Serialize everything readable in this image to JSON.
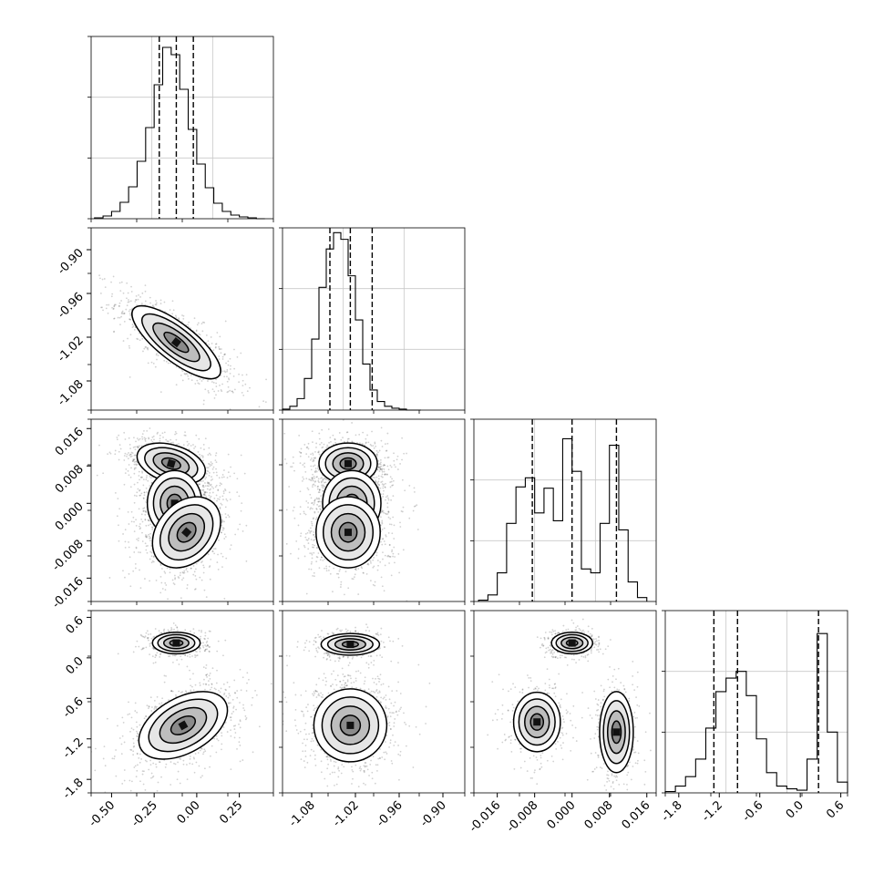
{
  "chart_data": [
    {
      "type": "corner",
      "panel": "hist-p0",
      "bins": [
        -0.6,
        -0.55,
        -0.5,
        -0.45,
        -0.4,
        -0.35,
        -0.3,
        -0.25,
        -0.2,
        -0.15,
        -0.1,
        -0.05,
        0.0,
        0.05,
        0.1,
        0.15,
        0.2,
        0.25,
        0.3,
        0.35,
        0.4
      ],
      "counts": [
        1,
        3,
        8,
        18,
        35,
        63,
        100,
        147,
        188,
        180,
        142,
        98,
        60,
        34,
        17,
        8,
        4,
        2,
        1,
        0
      ],
      "quantiles": [
        -0.22,
        -0.12,
        -0.02
      ],
      "xlim": [
        -0.62,
        0.45
      ],
      "ymax": 200
    },
    {
      "type": "corner",
      "panel": "hist-p1",
      "bins": [
        -1.12,
        -1.11,
        -1.1,
        -1.09,
        -1.08,
        -1.07,
        -1.06,
        -1.05,
        -1.04,
        -1.03,
        -1.02,
        -1.01,
        -1.0,
        -0.99,
        -0.98,
        -0.97,
        -0.96,
        -0.95,
        -0.94,
        -0.93
      ],
      "counts": [
        1,
        4,
        12,
        33,
        74,
        128,
        168,
        185,
        178,
        140,
        94,
        48,
        21,
        9,
        4,
        2,
        1,
        0,
        0
      ],
      "quantiles": [
        -1.055,
        -1.027,
        -0.997
      ],
      "xlim": [
        -1.12,
        -0.87
      ],
      "ymax": 190,
      "xticks": [
        "-1.08",
        "-1.02",
        "-0.96",
        "-0.90"
      ]
    },
    {
      "type": "corner",
      "panel": "hist-p2",
      "bins": [
        -0.02,
        -0.018,
        -0.016,
        -0.014,
        -0.012,
        -0.01,
        -0.008,
        -0.006,
        -0.004,
        -0.002,
        0.0,
        0.002,
        0.004,
        0.006,
        0.008,
        0.01,
        0.012,
        0.014,
        0.016
      ],
      "counts": [
        1,
        5,
        22,
        60,
        88,
        95,
        68,
        87,
        62,
        125,
        100,
        25,
        22,
        60,
        120,
        55,
        15,
        3
      ],
      "quantiles": [
        -0.0085,
        0.0,
        0.0095
      ],
      "xlim": [
        -0.021,
        0.018
      ],
      "ymax": 140,
      "xticks": [
        "-0.016",
        "-0.008",
        "0.000",
        "0.008",
        "0.016"
      ]
    },
    {
      "type": "corner",
      "panel": "hist-p3",
      "bins": [
        -2.0,
        -1.85,
        -1.7,
        -1.55,
        -1.4,
        -1.25,
        -1.1,
        -0.95,
        -0.8,
        -0.65,
        -0.5,
        -0.35,
        -0.2,
        -0.05,
        0.1,
        0.25,
        0.4,
        0.55,
        0.7
      ],
      "counts": [
        1,
        5,
        12,
        25,
        48,
        75,
        85,
        90,
        72,
        40,
        15,
        5,
        3,
        2,
        25,
        118,
        45,
        8
      ],
      "quantiles": [
        -1.28,
        -0.93,
        0.27
      ],
      "xlim": [
        -2.0,
        0.7
      ],
      "ymax": 135,
      "xticks": [
        "-1.8",
        "-1.2",
        "-0.6",
        "0.0",
        "0.6"
      ]
    },
    {
      "type": "scatter-density",
      "panel": "p1-vs-p0",
      "xlim": [
        -0.62,
        0.45
      ],
      "ylim": [
        -1.12,
        -0.87
      ],
      "components": [
        {
          "cx": -0.12,
          "cy": -1.027,
          "sx": 0.13,
          "sy": 0.025,
          "rho": -0.78,
          "w": 1
        }
      ],
      "yticks": [
        "-0.90",
        "-0.96",
        "-1.02",
        "-1.08"
      ]
    },
    {
      "type": "scatter-density",
      "panel": "p2-vs-p0",
      "xlim": [
        -0.62,
        0.45
      ],
      "ylim": [
        -0.021,
        0.018
      ],
      "components": [
        {
          "cx": -0.15,
          "cy": 0.0085,
          "sx": 0.1,
          "sy": 0.0022,
          "rho": -0.35,
          "w": 0.9
        },
        {
          "cx": -0.13,
          "cy": 0.0,
          "sx": 0.08,
          "sy": 0.0035,
          "rho": 0.0,
          "w": 1
        },
        {
          "cx": -0.06,
          "cy": -0.0062,
          "sx": 0.1,
          "sy": 0.0038,
          "rho": 0.3,
          "w": 0.9
        }
      ],
      "yticks": [
        "0.016",
        "0.008",
        "0.000",
        "-0.008",
        "-0.016"
      ]
    },
    {
      "type": "scatter-density",
      "panel": "p2-vs-p1",
      "xlim": [
        -1.12,
        -0.87
      ],
      "ylim": [
        -0.021,
        0.018
      ],
      "components": [
        {
          "cx": -1.03,
          "cy": 0.0085,
          "sx": 0.02,
          "sy": 0.0022,
          "rho": 0.0,
          "w": 0.9
        },
        {
          "cx": -1.025,
          "cy": 0.0,
          "sx": 0.02,
          "sy": 0.0035,
          "rho": 0.0,
          "w": 1
        },
        {
          "cx": -1.03,
          "cy": -0.0062,
          "sx": 0.022,
          "sy": 0.0038,
          "rho": 0.0,
          "w": 0.9
        }
      ]
    },
    {
      "type": "scatter-density",
      "panel": "p3-vs-p0",
      "xlim": [
        -0.62,
        0.45
      ],
      "ylim": [
        -2.0,
        0.7
      ],
      "components": [
        {
          "cx": -0.12,
          "cy": 0.22,
          "sx": 0.07,
          "sy": 0.08,
          "rho": 0.0,
          "w": 0.45
        },
        {
          "cx": -0.08,
          "cy": -1.0,
          "sx": 0.13,
          "sy": 0.25,
          "rho": 0.45,
          "w": 1
        }
      ],
      "yticks": [
        "0.6",
        "0.0",
        "-0.6",
        "-1.2",
        "-1.8"
      ],
      "xticks": [
        "-0.50",
        "-0.25",
        "0.00",
        "0.25"
      ]
    },
    {
      "type": "scatter-density",
      "panel": "p3-vs-p1",
      "xlim": [
        -1.12,
        -0.87
      ],
      "ylim": [
        -2.0,
        0.7
      ],
      "components": [
        {
          "cx": -1.027,
          "cy": 0.2,
          "sx": 0.02,
          "sy": 0.08,
          "rho": 0.0,
          "w": 0.45
        },
        {
          "cx": -1.027,
          "cy": -1.0,
          "sx": 0.025,
          "sy": 0.27,
          "rho": 0.0,
          "w": 1
        }
      ]
    },
    {
      "type": "scatter-density",
      "panel": "p3-vs-p2",
      "xlim": [
        -0.021,
        0.018
      ],
      "ylim": [
        -2.0,
        0.7
      ],
      "components": [
        {
          "cx": 0.0,
          "cy": 0.22,
          "sx": 0.0022,
          "sy": 0.08,
          "rho": 0.0,
          "w": 0.45
        },
        {
          "cx": -0.0075,
          "cy": -0.95,
          "sx": 0.0025,
          "sy": 0.22,
          "rho": 0.0,
          "w": 0.45
        },
        {
          "cx": 0.0095,
          "cy": -1.1,
          "sx": 0.0018,
          "sy": 0.3,
          "rho": 0.0,
          "w": 0.45
        }
      ]
    }
  ]
}
